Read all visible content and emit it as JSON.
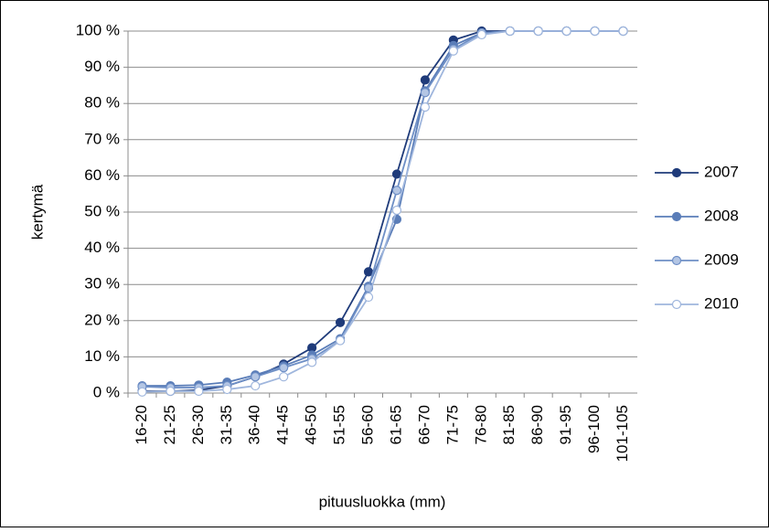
{
  "chart_data": {
    "type": "line",
    "y_label": "kertymä",
    "x_label": "pituusluokka (mm)",
    "categories": [
      "16-20",
      "21-25",
      "26-30",
      "31-35",
      "36-40",
      "41-45",
      "46-50",
      "51-55",
      "56-60",
      "61-65",
      "66-70",
      "71-75",
      "76-80",
      "81-85",
      "86-90",
      "91-95",
      "96-100",
      "101-105"
    ],
    "series": [
      {
        "name": "2007",
        "color": "#1f3b7a",
        "marker_fill": "#1f3b7a",
        "values": [
          0.5,
          0.5,
          0.8,
          2,
          4.5,
          8,
          12.5,
          19.5,
          33.5,
          60.5,
          86.5,
          97.5,
          100,
          100,
          100,
          100,
          100,
          100
        ]
      },
      {
        "name": "2008",
        "color": "#5a7db8",
        "marker_fill": "#5a7db8",
        "values": [
          2,
          2,
          2.2,
          3,
          5,
          7.5,
          10.5,
          15,
          29.5,
          48,
          83.5,
          96,
          99.5,
          100,
          100,
          100,
          100,
          100
        ]
      },
      {
        "name": "2009",
        "color": "#6e8fc6",
        "marker_fill": "#b4c6e4",
        "values": [
          1.8,
          1.5,
          1.5,
          2,
          4.5,
          7,
          9.5,
          14.5,
          29,
          56,
          83,
          95,
          99.5,
          100,
          100,
          100,
          100,
          100
        ]
      },
      {
        "name": "2010",
        "color": "#9fb6dd",
        "marker_fill": "#ffffff",
        "values": [
          0.3,
          0.5,
          0.5,
          1,
          2,
          4.5,
          8.5,
          14.5,
          26.5,
          50.5,
          79,
          94.5,
          99,
          100,
          100,
          100,
          100,
          100
        ]
      }
    ],
    "ylim": [
      0,
      100
    ],
    "yticks": [
      {
        "value": 0,
        "label": "0 %"
      },
      {
        "value": 10,
        "label": "10 %"
      },
      {
        "value": 20,
        "label": "20 %"
      },
      {
        "value": 30,
        "label": "30 %"
      },
      {
        "value": 40,
        "label": "40 %"
      },
      {
        "value": 50,
        "label": "50 %"
      },
      {
        "value": 60,
        "label": "60 %"
      },
      {
        "value": 70,
        "label": "70 %"
      },
      {
        "value": 80,
        "label": "80 %"
      },
      {
        "value": 90,
        "label": "90 %"
      },
      {
        "value": 100,
        "label": "100 %"
      }
    ],
    "grid": true,
    "legend": "right"
  }
}
